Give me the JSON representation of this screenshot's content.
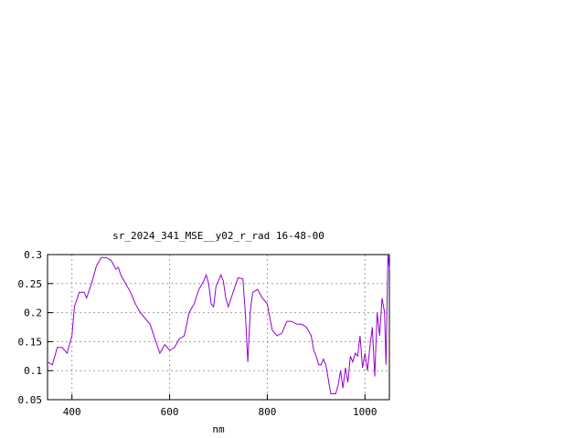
{
  "chart_data": {
    "type": "line",
    "title": "sr_2024_341_MSE__y02_r_rad 16-48-00",
    "x_label": "nm",
    "xlim": [
      350,
      1050
    ],
    "ylim": [
      0.05,
      0.3
    ],
    "xticks": [
      400,
      600,
      800,
      1000
    ],
    "yticks": [
      0.05,
      0.1,
      0.15,
      0.2,
      0.25,
      0.3
    ],
    "grid": true,
    "series": [
      {
        "color": "#9400d3",
        "x": [
          350,
          360,
          370,
          380,
          390,
          400,
          405,
          415,
          425,
          430,
          440,
          450,
          460,
          470,
          480,
          490,
          495,
          500,
          510,
          520,
          530,
          540,
          550,
          560,
          570,
          580,
          590,
          600,
          610,
          620,
          630,
          640,
          650,
          660,
          670,
          675,
          680,
          685,
          690,
          695,
          705,
          710,
          715,
          720,
          730,
          740,
          750,
          755,
          760,
          765,
          770,
          780,
          790,
          800,
          810,
          820,
          830,
          840,
          850,
          860,
          870,
          880,
          890,
          895,
          900,
          905,
          910,
          915,
          920,
          930,
          940,
          945,
          950,
          955,
          960,
          965,
          970,
          975,
          980,
          985,
          990,
          995,
          1000,
          1005,
          1010,
          1015,
          1020,
          1025,
          1030,
          1035,
          1040,
          1043,
          1047,
          1050
        ],
        "values": [
          0.115,
          0.11,
          0.14,
          0.14,
          0.13,
          0.16,
          0.21,
          0.235,
          0.235,
          0.225,
          0.25,
          0.28,
          0.295,
          0.295,
          0.29,
          0.275,
          0.278,
          0.265,
          0.25,
          0.235,
          0.215,
          0.2,
          0.19,
          0.18,
          0.155,
          0.13,
          0.145,
          0.135,
          0.14,
          0.155,
          0.16,
          0.2,
          0.215,
          0.24,
          0.255,
          0.265,
          0.25,
          0.215,
          0.21,
          0.245,
          0.265,
          0.255,
          0.225,
          0.21,
          0.235,
          0.26,
          0.258,
          0.2,
          0.115,
          0.2,
          0.235,
          0.24,
          0.225,
          0.215,
          0.17,
          0.16,
          0.165,
          0.185,
          0.185,
          0.18,
          0.18,
          0.175,
          0.16,
          0.135,
          0.125,
          0.11,
          0.11,
          0.12,
          0.11,
          0.06,
          0.06,
          0.075,
          0.1,
          0.07,
          0.105,
          0.08,
          0.125,
          0.115,
          0.13,
          0.125,
          0.16,
          0.105,
          0.13,
          0.1,
          0.14,
          0.175,
          0.09,
          0.2,
          0.16,
          0.225,
          0.2,
          0.11,
          0.3,
          0.275
        ]
      }
    ]
  }
}
